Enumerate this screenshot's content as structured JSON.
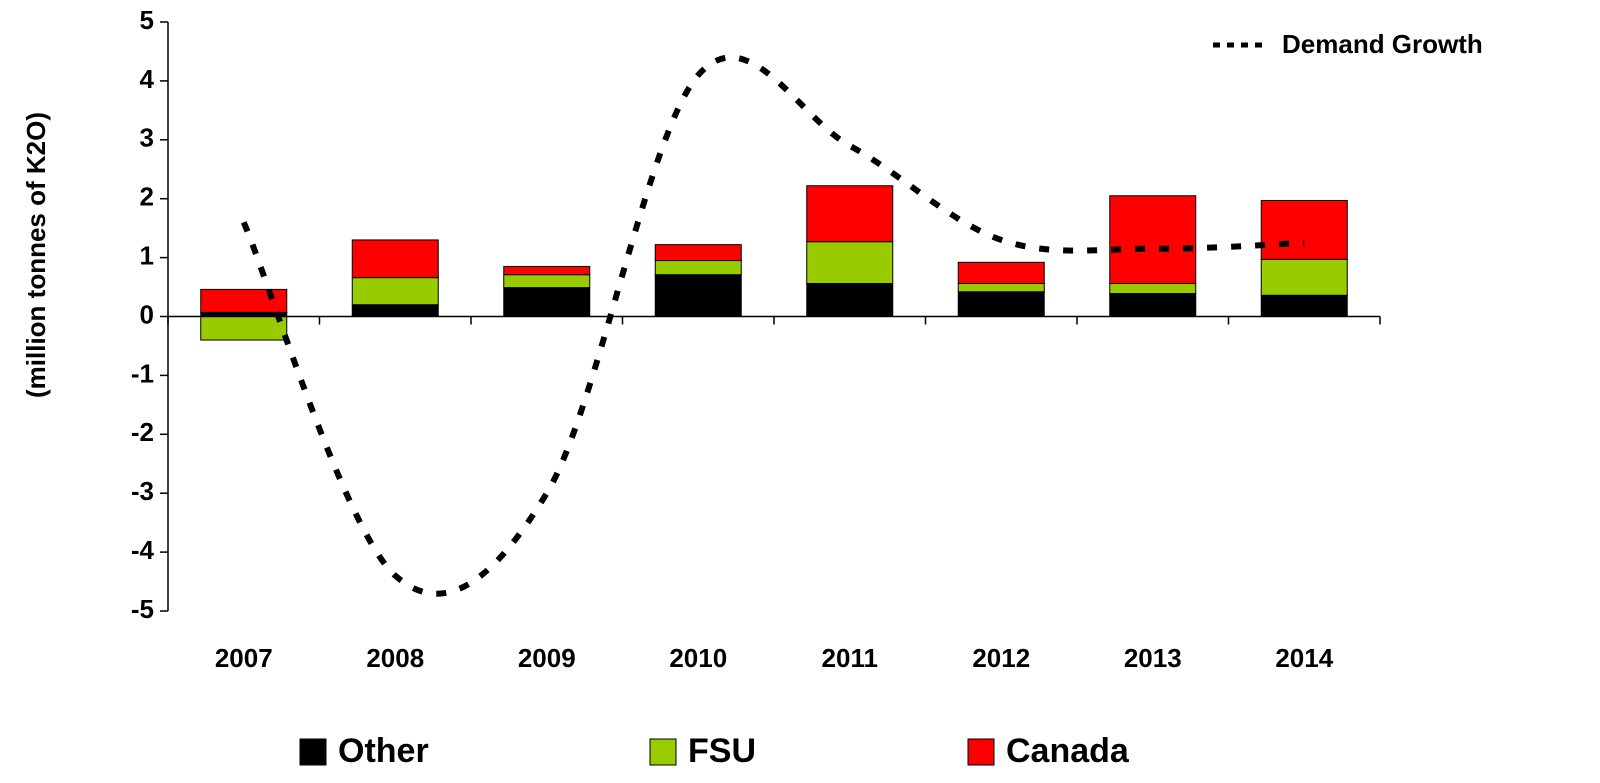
{
  "chart_data": {
    "type": "bar",
    "y_label": "(million tonnes of K2O)",
    "categories": [
      "2007",
      "2008",
      "2009",
      "2010",
      "2011",
      "2012",
      "2013",
      "2014"
    ],
    "series": [
      {
        "name": "Other",
        "color": "#000000",
        "values": [
          0.07,
          0.2,
          0.49,
          0.71,
          0.56,
          0.42,
          0.39,
          0.36
        ]
      },
      {
        "name": "FSU",
        "color": "#99cc00",
        "values": [
          -0.4,
          0.46,
          0.22,
          0.24,
          0.71,
          0.14,
          0.17,
          0.61
        ]
      },
      {
        "name": "Canada",
        "color": "#ff0000",
        "values": [
          0.39,
          0.64,
          0.14,
          0.27,
          0.95,
          0.36,
          1.49,
          1.0
        ]
      },
      {
        "name": "Demand Growth",
        "type": "line",
        "color": "#000000",
        "style": "dotted",
        "values": [
          1.6,
          -4.4,
          -3.0,
          4.1,
          2.9,
          1.3,
          1.15,
          1.25
        ]
      }
    ],
    "stacked": true,
    "ylim": [
      -5,
      5
    ],
    "yticks": [
      -5,
      -4,
      -3,
      -2,
      -1,
      0,
      1,
      2,
      3,
      4,
      5
    ],
    "grid": false
  }
}
